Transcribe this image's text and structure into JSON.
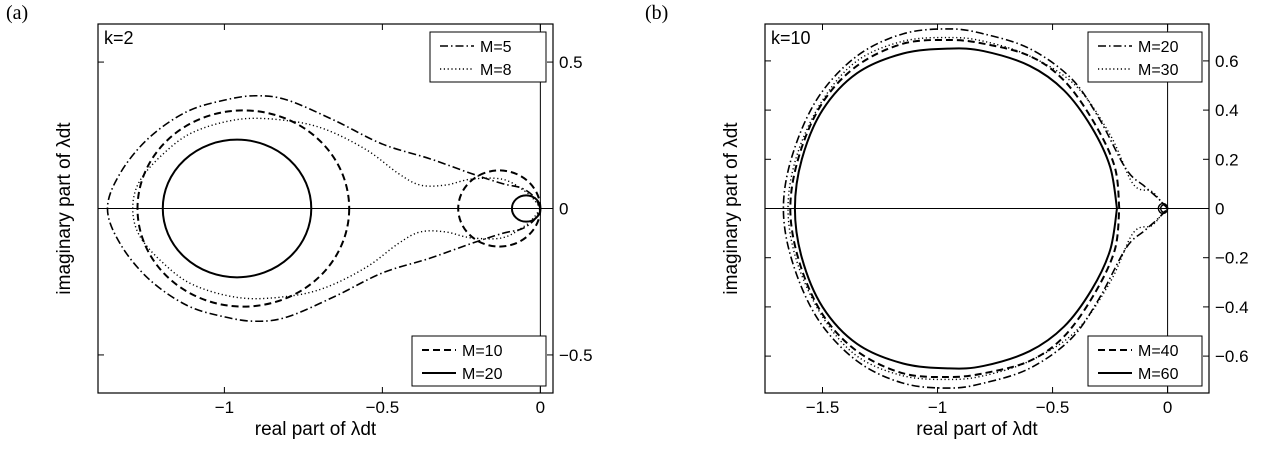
{
  "panels": [
    {
      "tag": "(a)",
      "k_label": "k=2"
    },
    {
      "tag": "(b)",
      "k_label": "k=10"
    }
  ],
  "chart_data": [
    {
      "type": "line",
      "panel": "(a)",
      "annotation": "k=2",
      "xlabel": "real part of λdt",
      "ylabel": "imaginary part of λdt",
      "xlim": [
        -1.4,
        0.04
      ],
      "ylim": [
        -0.63,
        0.63
      ],
      "xticks": [
        -1,
        -0.5,
        0
      ],
      "xtick_labels": [
        "−1",
        "−0.5",
        "0"
      ],
      "yticks": [
        -0.5,
        0,
        0.5
      ],
      "ytick_labels": [
        "−0.5",
        "0",
        "0.5"
      ],
      "y_axis_side": "right",
      "grid": false,
      "legends": [
        {
          "placement": "top-right",
          "entries": [
            "M=5",
            "M=8"
          ]
        },
        {
          "placement": "bottom-right",
          "entries": [
            "M=10",
            "M=20"
          ]
        }
      ],
      "series": [
        {
          "name": "M=5",
          "style": "dashdot",
          "shape": "stability-region",
          "points": [
            [
              0,
              0
            ],
            [
              -0.02,
              0.04
            ],
            [
              -0.06,
              0.07
            ],
            [
              -0.12,
              0.085
            ],
            [
              -0.22,
              0.12
            ],
            [
              -0.35,
              0.17
            ],
            [
              -0.5,
              0.22
            ],
            [
              -0.65,
              0.3
            ],
            [
              -0.8,
              0.37
            ],
            [
              -0.9,
              0.385
            ],
            [
              -1.0,
              0.37
            ],
            [
              -1.12,
              0.33
            ],
            [
              -1.24,
              0.24
            ],
            [
              -1.33,
              0.12
            ],
            [
              -1.37,
              0
            ]
          ]
        },
        {
          "name": "M=8",
          "style": "dotted",
          "shape": "stability-region",
          "points": [
            [
              0,
              0
            ],
            [
              -0.02,
              0.03
            ],
            [
              -0.05,
              0.06
            ],
            [
              -0.12,
              0.1
            ],
            [
              -0.22,
              0.1
            ],
            [
              -0.3,
              0.08
            ],
            [
              -0.38,
              0.08
            ],
            [
              -0.45,
              0.12
            ],
            [
              -0.55,
              0.2
            ],
            [
              -0.68,
              0.27
            ],
            [
              -0.8,
              0.3
            ],
            [
              -0.95,
              0.305
            ],
            [
              -1.1,
              0.26
            ],
            [
              -1.2,
              0.18
            ],
            [
              -1.27,
              0.09
            ],
            [
              -1.29,
              0
            ]
          ]
        },
        {
          "name": "M=10",
          "style": "dashed",
          "shape": "two-circles",
          "circles": [
            {
              "center": [
                -0.94,
                0
              ],
              "radius": 0.335
            },
            {
              "center": [
                -0.13,
                0
              ],
              "radius": 0.13
            }
          ]
        },
        {
          "name": "M=20",
          "style": "solid",
          "shape": "two-circles",
          "circles": [
            {
              "center": [
                -0.96,
                0
              ],
              "radius": 0.235
            },
            {
              "center": [
                -0.045,
                0
              ],
              "radius": 0.045
            }
          ]
        }
      ]
    },
    {
      "type": "line",
      "panel": "(b)",
      "annotation": "k=10",
      "xlabel": "real part of λdt",
      "ylabel": "imaginary part of λdt",
      "xlim": [
        -1.75,
        0.18
      ],
      "ylim": [
        -0.75,
        0.75
      ],
      "xticks": [
        -1.5,
        -1,
        -0.5,
        0
      ],
      "xtick_labels": [
        "−1.5",
        "−1",
        "−0.5",
        "0"
      ],
      "yticks": [
        -0.6,
        -0.4,
        -0.2,
        0,
        0.2,
        0.4,
        0.6
      ],
      "ytick_labels": [
        "−0.6",
        "−0.4",
        "−0.2",
        "0",
        "0.2",
        "0.4",
        "0.6"
      ],
      "y_axis_side": "right",
      "grid": false,
      "legends": [
        {
          "placement": "top-right",
          "entries": [
            "M=20",
            "M=30"
          ]
        },
        {
          "placement": "bottom-right",
          "entries": [
            "M=40",
            "M=60"
          ]
        }
      ],
      "series": [
        {
          "name": "M=20",
          "style": "dashdot",
          "shape": "stability-region",
          "points": [
            [
              0,
              0
            ],
            [
              -0.04,
              0.04
            ],
            [
              -0.1,
              0.09
            ],
            [
              -0.18,
              0.16
            ],
            [
              -0.3,
              0.37
            ],
            [
              -0.42,
              0.53
            ],
            [
              -0.6,
              0.65
            ],
            [
              -0.8,
              0.71
            ],
            [
              -0.95,
              0.73
            ],
            [
              -1.15,
              0.71
            ],
            [
              -1.35,
              0.62
            ],
            [
              -1.52,
              0.45
            ],
            [
              -1.63,
              0.22
            ],
            [
              -1.67,
              0
            ]
          ]
        },
        {
          "name": "M=30",
          "style": "dotted",
          "shape": "stability-region",
          "points": [
            [
              0,
              0
            ],
            [
              -0.03,
              0.03
            ],
            [
              -0.07,
              0.07
            ],
            [
              -0.15,
              0.1
            ],
            [
              -0.25,
              0.3
            ],
            [
              -0.4,
              0.5
            ],
            [
              -0.6,
              0.62
            ],
            [
              -0.8,
              0.68
            ],
            [
              -0.95,
              0.695
            ],
            [
              -1.15,
              0.68
            ],
            [
              -1.35,
              0.6
            ],
            [
              -1.5,
              0.44
            ],
            [
              -1.61,
              0.22
            ],
            [
              -1.65,
              0
            ]
          ]
        },
        {
          "name": "M=40",
          "style": "dashed",
          "shape": "stability-region",
          "points": [
            [
              -0.21,
              0
            ],
            [
              -0.23,
              0.17
            ],
            [
              -0.32,
              0.35
            ],
            [
              -0.45,
              0.52
            ],
            [
              -0.6,
              0.62
            ],
            [
              -0.8,
              0.67
            ],
            [
              -0.95,
              0.685
            ],
            [
              -1.15,
              0.67
            ],
            [
              -1.35,
              0.58
            ],
            [
              -1.5,
              0.43
            ],
            [
              -1.6,
              0.22
            ],
            [
              -1.64,
              0
            ]
          ],
          "inner_circle": {
            "center": [
              -0.02,
              0
            ],
            "radius": 0.02
          }
        },
        {
          "name": "M=60",
          "style": "solid",
          "shape": "stability-region",
          "points": [
            [
              -0.22,
              0
            ],
            [
              -0.25,
              0.17
            ],
            [
              -0.33,
              0.33
            ],
            [
              -0.45,
              0.48
            ],
            [
              -0.6,
              0.58
            ],
            [
              -0.8,
              0.64
            ],
            [
              -0.95,
              0.65
            ],
            [
              -1.15,
              0.63
            ],
            [
              -1.35,
              0.55
            ],
            [
              -1.5,
              0.4
            ],
            [
              -1.59,
              0.2
            ],
            [
              -1.62,
              0
            ]
          ],
          "inner_circle": {
            "center": [
              -0.015,
              0
            ],
            "radius": 0.015
          }
        }
      ]
    }
  ]
}
